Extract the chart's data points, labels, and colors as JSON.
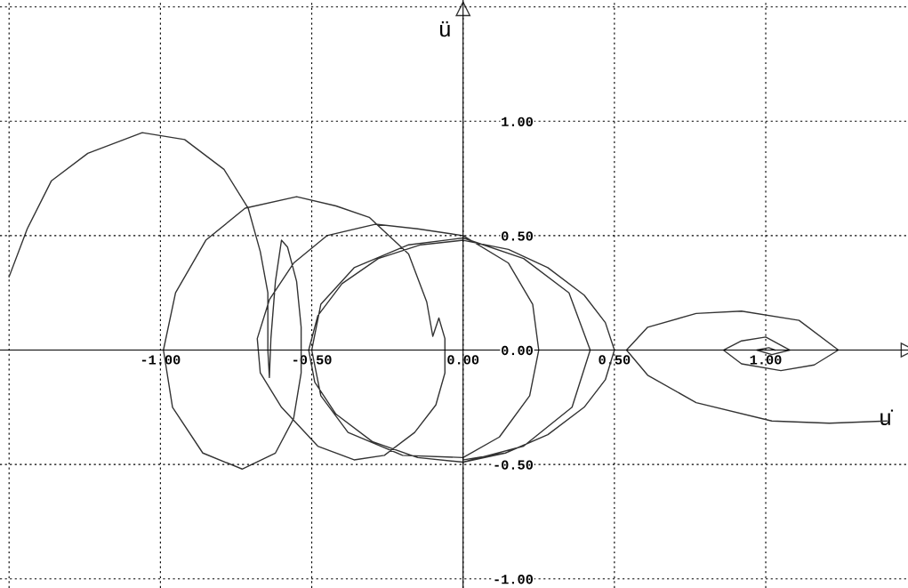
{
  "chart_data": {
    "type": "line",
    "xlabel": "u̇",
    "ylabel": "ü",
    "xlim": [
      -1.53,
      1.47
    ],
    "ylim": [
      -1.04,
      1.53
    ],
    "xticks": [
      {
        "value": -1.5,
        "label": null
      },
      {
        "value": -1.0,
        "label": "-1.00"
      },
      {
        "value": -0.5,
        "label": "-0.50"
      },
      {
        "value": 0,
        "label": "0.00"
      },
      {
        "value": 0.5,
        "label": "0.50"
      },
      {
        "value": 1.0,
        "label": "1.00"
      }
    ],
    "yticks": [
      {
        "value": -1.0,
        "label": "-1.00"
      },
      {
        "value": -0.5,
        "label": "-0.50"
      },
      {
        "value": 0,
        "label": "0.00"
      },
      {
        "value": 0.5,
        "label": "0.50"
      },
      {
        "value": 1.0,
        "label": "1.00"
      },
      {
        "value": 1.5,
        "label": null
      }
    ],
    "grid": true,
    "legend": false,
    "marker": "none",
    "line_style": "solid",
    "series": [
      {
        "color": "#333333",
        "x": [
          -1.5,
          -1.44,
          -1.36,
          -1.24,
          -1.06,
          -0.92,
          -0.79,
          -0.71,
          -0.67,
          -0.645,
          -0.645,
          -0.64,
          -0.635,
          -0.62,
          -0.6,
          -0.58,
          -0.55,
          -0.535,
          -0.535,
          -0.56,
          -0.62,
          -0.73,
          -0.86,
          -0.96,
          -0.99,
          -0.95,
          -0.85,
          -0.72,
          -0.55,
          -0.42,
          -0.31,
          -0.18,
          -0.12,
          -0.1,
          -0.08,
          -0.06,
          -0.06,
          -0.09,
          -0.16,
          -0.26,
          -0.36,
          -0.48,
          -0.6,
          -0.67,
          -0.68,
          -0.64,
          -0.56,
          -0.45,
          -0.29,
          -0.15,
          0.0,
          0.15,
          0.23,
          0.25,
          0.22,
          0.12,
          0.0,
          -0.2,
          -0.38,
          -0.47,
          -0.5,
          -0.47,
          -0.36,
          -0.18,
          0.0,
          0.2,
          0.35,
          0.42,
          0.36,
          0.2,
          0.0,
          -0.15,
          -0.3,
          -0.42,
          -0.49,
          -0.51,
          -0.48,
          -0.4,
          -0.28,
          -0.14,
          0.0,
          0.15,
          0.28,
          0.4,
          0.47,
          0.5,
          0.47,
          0.4,
          0.28,
          0.14,
          0.0,
          -0.15,
          -0.3,
          -0.42,
          -0.49,
          -0.51,
          -0.48,
          -0.4,
          -0.28,
          -0.14,
          0.0,
          0.15,
          0.28,
          0.4,
          0.47,
          0.5,
          0.47,
          0.4,
          0.28,
          0.14,
          0.0
        ],
        "values": [
          0.32,
          0.53,
          0.74,
          0.86,
          0.95,
          0.92,
          0.79,
          0.62,
          0.43,
          0.25,
          0.0,
          -0.12,
          0.05,
          0.3,
          0.48,
          0.45,
          0.3,
          0.1,
          -0.1,
          -0.3,
          -0.45,
          -0.52,
          -0.45,
          -0.25,
          0.0,
          0.25,
          0.48,
          0.62,
          0.67,
          0.63,
          0.58,
          0.42,
          0.21,
          0.06,
          0.14,
          0.05,
          -0.1,
          -0.24,
          -0.36,
          -0.46,
          -0.48,
          -0.42,
          -0.25,
          -0.1,
          0.05,
          0.22,
          0.38,
          0.5,
          0.55,
          0.53,
          0.5,
          0.38,
          0.2,
          0.0,
          -0.2,
          -0.38,
          -0.47,
          -0.46,
          -0.36,
          -0.2,
          0.0,
          0.2,
          0.36,
          0.46,
          0.49,
          0.4,
          0.25,
          0.0,
          -0.25,
          -0.42,
          -0.49,
          -0.47,
          -0.4,
          -0.28,
          -0.14,
          0.0,
          0.15,
          0.29,
          0.4,
          0.46,
          0.48,
          0.44,
          0.36,
          0.24,
          0.12,
          0.0,
          -0.13,
          -0.25,
          -0.37,
          -0.45,
          -0.49,
          -0.47,
          -0.4,
          -0.28,
          -0.14,
          0.0,
          0.15,
          0.29,
          0.4,
          0.46,
          0.48,
          0.44,
          0.36,
          0.24,
          0.12,
          0.0,
          -0.13,
          -0.25,
          -0.37,
          -0.45,
          -0.48
        ]
      },
      {
        "color": "#333333",
        "x": [
          1.4,
          1.21,
          1.02,
          0.77,
          0.61,
          0.54,
          0.61,
          0.77,
          0.92,
          1.11,
          1.24,
          1.16,
          1.05,
          0.92,
          0.86,
          0.92,
          1.0,
          1.08,
          1.02,
          0.97,
          1.01,
          1.03
        ],
        "values": [
          -0.31,
          -0.32,
          -0.31,
          -0.23,
          -0.11,
          0.0,
          0.1,
          0.16,
          0.17,
          0.13,
          0.0,
          -0.065,
          -0.09,
          -0.06,
          0.0,
          0.04,
          0.057,
          0.0,
          -0.02,
          0.0,
          0.01,
          0.0
        ]
      }
    ]
  }
}
